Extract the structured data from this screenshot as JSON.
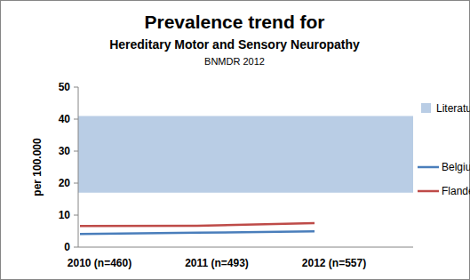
{
  "chart_data": {
    "type": "line",
    "title": "Prevalence trend for",
    "subtitle": "Hereditary Motor and Sensory Neuropathy",
    "annotations": [
      "BNMDR 2012"
    ],
    "y_label": "per 100.000",
    "categories": [
      "2010 (n=460)",
      "2011 (n=493)",
      "2012 (n=557)"
    ],
    "series": [
      {
        "name": "Literature",
        "type": "area",
        "color": "#b9cde5",
        "values": [
          41,
          41,
          41
        ],
        "lower": [
          17,
          17,
          17
        ]
      },
      {
        "name": "Belgium",
        "type": "line",
        "color": "#4a7ebb",
        "values": [
          4.1,
          4.5,
          4.9
        ]
      },
      {
        "name": "Flanders",
        "type": "line",
        "color": "#be4b48",
        "values": [
          6.6,
          6.7,
          7.5
        ]
      }
    ],
    "ylim": [
      0,
      50
    ],
    "yticks": [
      0,
      10,
      20,
      30,
      40,
      50
    ],
    "grid": false,
    "legend": "right"
  }
}
